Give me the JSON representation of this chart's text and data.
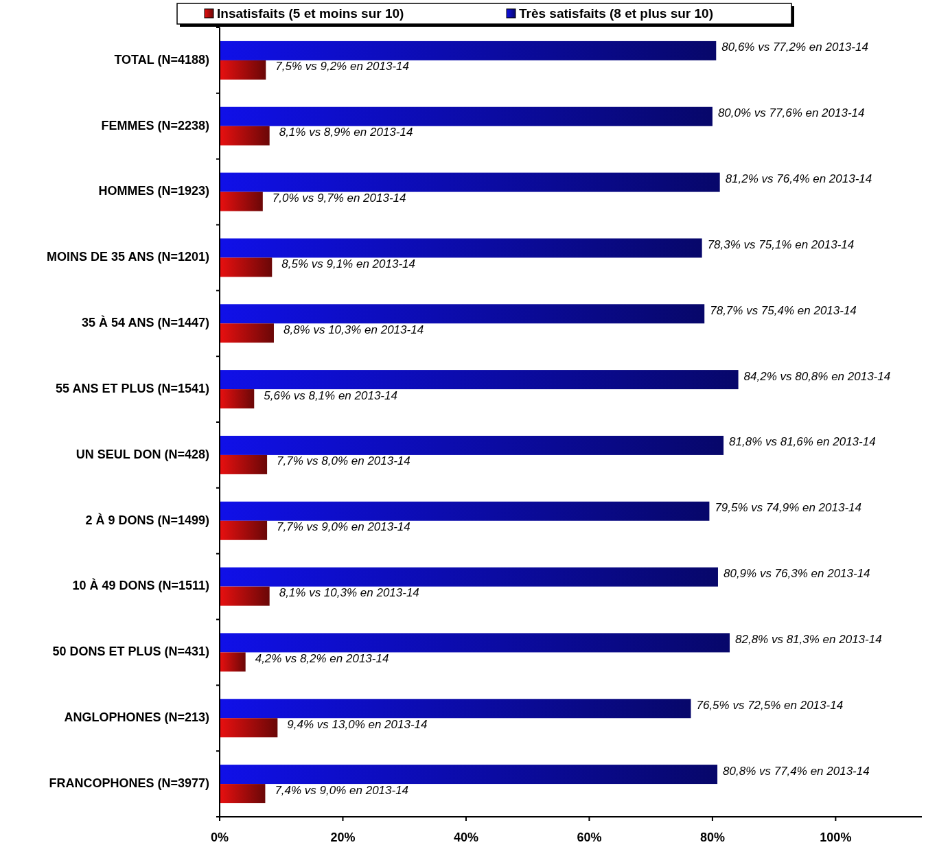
{
  "chart_data": {
    "type": "bar",
    "orientation": "horizontal",
    "legend": "top",
    "categories": [
      "TOTAL (N=4188)",
      "FEMMES (N=2238)",
      "HOMMES (N=1923)",
      "MOINS DE 35 ANS (N=1201)",
      "35 À 54 ANS (N=1447)",
      "55 ANS ET PLUS (N=1541)",
      "UN SEUL DON (N=428)",
      "2 À 9 DONS (N=1499)",
      "10 À 49 DONS (N=1511)",
      "50 DONS ET PLUS (N=431)",
      "ANGLOPHONES (N=213)",
      "FRANCOPHONES (N=3977)"
    ],
    "series": [
      {
        "name": "Très satisfaits (8 et plus sur 10)",
        "color": "#1010e8",
        "values": [
          80.6,
          80.0,
          81.2,
          78.3,
          78.7,
          84.2,
          81.8,
          79.5,
          80.9,
          82.8,
          76.5,
          80.8
        ],
        "value_labels": [
          "80,6% vs 77,2% en 2013-14",
          "80,0% vs 77,6% en 2013-14",
          "81,2% vs 76,4% en 2013-14",
          "78,3% vs 75,1% en 2013-14",
          "78,7% vs 75,4% en 2013-14",
          "84,2% vs 80,8% en 2013-14",
          "81,8% vs 81,6% en 2013-14",
          "79,5% vs 74,9% en 2013-14",
          "80,9% vs 76,3% en 2013-14",
          "82,8% vs 81,3% en 2013-14",
          "76,5% vs 72,5% en 2013-14",
          "80,8% vs 77,4% en 2013-14"
        ]
      },
      {
        "name": "Insatisfaits (5 et moins sur 10)",
        "color": "#e81010",
        "values": [
          7.5,
          8.1,
          7.0,
          8.5,
          8.8,
          5.6,
          7.7,
          7.7,
          8.1,
          4.2,
          9.4,
          7.4
        ],
        "value_labels": [
          "7,5% vs 9,2% en 2013-14",
          "8,1% vs 8,9% en 2013-14",
          "7,0% vs 9,7% en 2013-14",
          "8,5% vs 9,1% en 2013-14",
          "8,8% vs 10,3% en 2013-14",
          "5,6% vs 8,1% en 2013-14",
          "7,7% vs 8,0% en 2013-14",
          "7,7% vs 9,0% en 2013-14",
          "8,1% vs 10,3% en 2013-14",
          "4,2% vs 8,2% en 2013-14",
          "9,4% vs 13,0% en 2013-14",
          "7,4% vs 9,0% en 2013-14"
        ]
      }
    ],
    "xlim": [
      0,
      114
    ],
    "xticks": [
      {
        "value": 0,
        "label": "0%"
      },
      {
        "value": 20,
        "label": "20%"
      },
      {
        "value": 40,
        "label": "40%"
      },
      {
        "value": 60,
        "label": "60%"
      },
      {
        "value": 80,
        "label": "80%"
      },
      {
        "value": 100,
        "label": "100%"
      }
    ]
  }
}
